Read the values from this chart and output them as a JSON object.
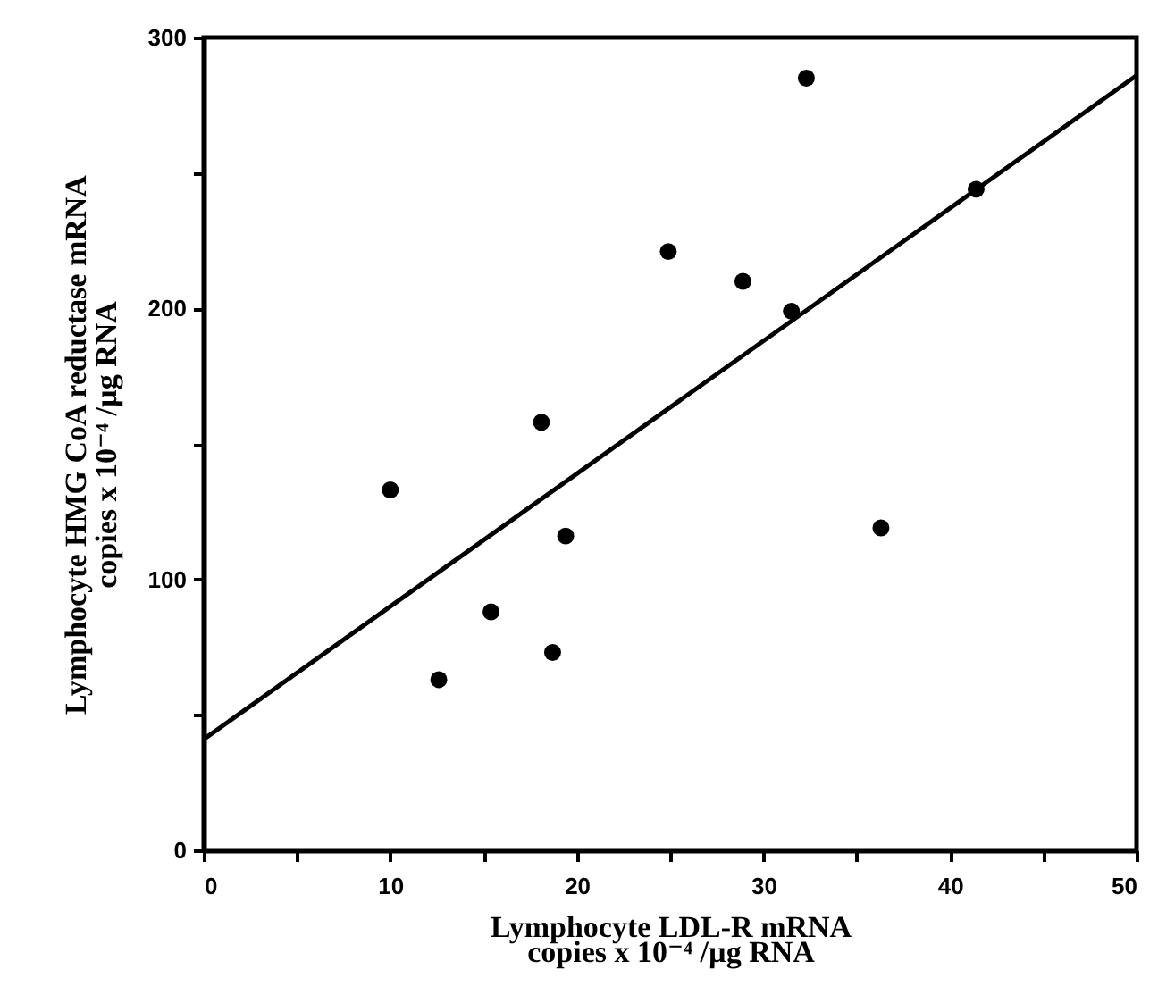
{
  "chart_data": {
    "type": "scatter",
    "xlabel": "Lymphocyte LDL-R mRNA\ncopies x 10⁻⁴ /µg RNA",
    "ylabel": "Lymphocyte HMG CoA reductase mRNA\ncopies x 10⁻⁴ /µg RNA",
    "xlim": [
      0,
      50
    ],
    "ylim": [
      0,
      300
    ],
    "xticks": [
      0,
      {
        "value": 5,
        "label": null
      },
      10,
      {
        "value": 15,
        "label": null
      },
      20,
      {
        "value": 25,
        "label": null
      },
      30,
      {
        "value": 35,
        "label": null
      },
      40,
      {
        "value": 45,
        "label": null
      },
      50
    ],
    "yticks": [
      0,
      {
        "value": 50,
        "label": null
      },
      100,
      {
        "value": 150,
        "label": null
      },
      200,
      {
        "value": 250,
        "label": null
      },
      300
    ],
    "grid": false,
    "series": [
      {
        "color": "#000000",
        "marker": "circle",
        "x": [
          10.0,
          12.6,
          15.4,
          18.1,
          18.7,
          19.4,
          24.9,
          28.9,
          31.5,
          32.3,
          36.3,
          41.4
        ],
        "values": [
          133,
          63,
          88,
          158,
          73,
          116,
          221,
          210,
          199,
          285,
          119,
          244
        ]
      },
      {
        "type": "line",
        "color": "#000000",
        "line_style": "solid",
        "marker": "none",
        "x": [
          0,
          50
        ],
        "values": [
          41,
          286
        ]
      }
    ]
  }
}
